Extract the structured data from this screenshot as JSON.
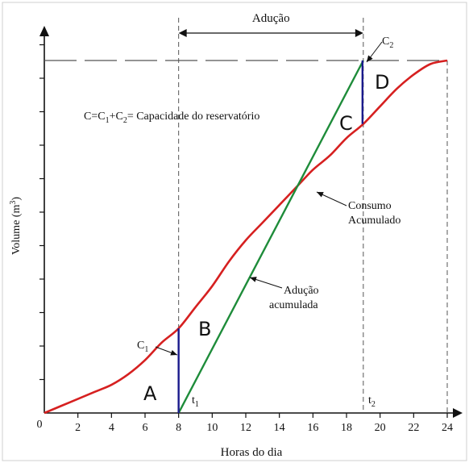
{
  "chart_data": {
    "type": "line",
    "xlabel": "Horas do dia",
    "ylabel_main": "Volume (m",
    "ylabel_sup": "3",
    "ylabel_close": ")",
    "origin_label": "0",
    "xlim": [
      0,
      24
    ],
    "ylim": [
      0,
      100
    ],
    "x_ticks": [
      "2",
      "4",
      "6",
      "8",
      "10",
      "12",
      "14",
      "16",
      "18",
      "20",
      "22",
      "24"
    ],
    "grid": false,
    "series": [
      {
        "name": "Consumo Acumulado",
        "color": "#d62020",
        "x": [
          0,
          1,
          2,
          3,
          4,
          5,
          6,
          7,
          8,
          9,
          10,
          11,
          12,
          13,
          14,
          15,
          16,
          17,
          18,
          19,
          20,
          21,
          22,
          23,
          24
        ],
        "y": [
          0,
          2,
          4,
          6,
          8,
          11,
          15,
          20,
          24,
          30,
          36,
          43,
          49,
          54,
          59,
          64,
          69,
          73,
          78,
          82,
          87,
          92,
          96,
          99,
          100
        ]
      },
      {
        "name": "Adução acumulada",
        "color": "#1e8c3a",
        "x": [
          8,
          19
        ],
        "y": [
          0,
          100
        ]
      }
    ],
    "capacity_level": 100,
    "t1": 8,
    "t2": 19,
    "c1_segment": {
      "x": 8,
      "y_from": 0,
      "y_to": 24
    },
    "c2_segment": {
      "x": 19,
      "y_from": 82,
      "y_to": 100
    },
    "annotations": {
      "aducao_range": "Adução",
      "capacity_formula": {
        "p1": "C=C",
        "s1": "1",
        "p2": "+C",
        "s2": "2",
        "p3": "= Capacidade do reservatório"
      },
      "consumo_label_1": "Consumo",
      "consumo_label_2": "Acumulado",
      "aducao_label_1": "Adução",
      "aducao_label_2": "acumulada",
      "c1": {
        "base": "C",
        "sub": "1"
      },
      "c2": {
        "base": "C",
        "sub": "2"
      },
      "t1": {
        "base": "t",
        "sub": "1"
      },
      "t2": {
        "base": "t",
        "sub": "2"
      },
      "region_a": "A",
      "region_b": "B",
      "region_c": "C",
      "region_d": "D"
    },
    "colors": {
      "axis": "#111111",
      "guides": "#555555",
      "segment": "#1a1a8c"
    }
  }
}
